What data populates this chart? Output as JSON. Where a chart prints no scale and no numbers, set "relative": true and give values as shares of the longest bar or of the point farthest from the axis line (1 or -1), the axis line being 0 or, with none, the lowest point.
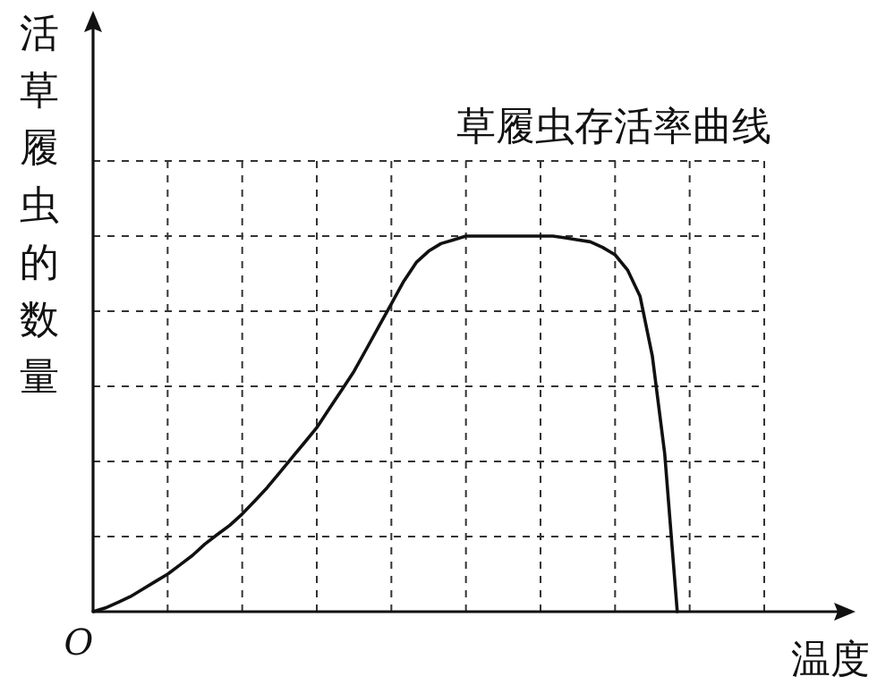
{
  "chart_data": {
    "type": "line",
    "relative": true,
    "title": "草履虫存活率曲线",
    "xlabel": "温度",
    "ylabel": "活草履虫的数量",
    "annotations": [
      "O"
    ],
    "categories": [
      null,
      null,
      null,
      null,
      null,
      null,
      null,
      null,
      null,
      null,
      null,
      null,
      null,
      null,
      null,
      null,
      null,
      null,
      null,
      null,
      null,
      null,
      null,
      null,
      null,
      null,
      null,
      null,
      null,
      null,
      null,
      null,
      null,
      null,
      null,
      null,
      null,
      null,
      null,
      null,
      null,
      null,
      null,
      null,
      null,
      null,
      null,
      null,
      null,
      null,
      null,
      null,
      null,
      null,
      null
    ],
    "series": [
      {
        "color": "#111111",
        "values": [
          0,
          0.01,
          0.025,
          0.04,
          0.06,
          0.08,
          0.1,
          0.125,
          0.15,
          0.18,
          0.205,
          0.23,
          0.26,
          0.295,
          0.33,
          0.37,
          0.41,
          0.45,
          0.49,
          0.54,
          0.59,
          0.64,
          0.7,
          0.76,
          0.82,
          0.88,
          0.93,
          0.96,
          0.98,
          0.99,
          1,
          1,
          1,
          1,
          1,
          1,
          1,
          1,
          0.995,
          0.99,
          0.985,
          0.97,
          0.95,
          0.91,
          0.84,
          0.68,
          0.42,
          0,
          null,
          null,
          null,
          null,
          null,
          null,
          null
        ]
      }
    ],
    "grid": true,
    "line_style": "solid",
    "marker": "none"
  }
}
